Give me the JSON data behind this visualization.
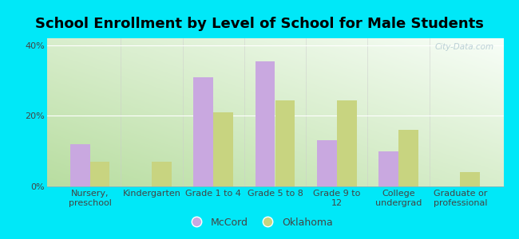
{
  "title": "School Enrollment by Level of School for Male Students",
  "categories": [
    "Nursery,\npreschool",
    "Kindergarten",
    "Grade 1 to 4",
    "Grade 5 to 8",
    "Grade 9 to\n12",
    "College\nundergrad",
    "Graduate or\nprofessional"
  ],
  "mccord": [
    12.0,
    0.0,
    31.0,
    35.5,
    13.0,
    10.0,
    0.0
  ],
  "oklahoma": [
    7.0,
    7.0,
    21.0,
    24.5,
    24.5,
    16.0,
    4.0
  ],
  "mccord_color": "#c9a8e0",
  "oklahoma_color": "#c8d480",
  "background_outer": "#00e8f8",
  "grad_bottom_left": "#b8dda0",
  "grad_top_right": "#f0faf0",
  "ylabel_ticks": [
    "0%",
    "20%",
    "40%"
  ],
  "yticks": [
    0,
    20,
    40
  ],
  "ylim": [
    0,
    42
  ],
  "bar_width": 0.32,
  "title_fontsize": 13,
  "tick_fontsize": 8,
  "legend_fontsize": 9,
  "watermark": "City-Data.com"
}
